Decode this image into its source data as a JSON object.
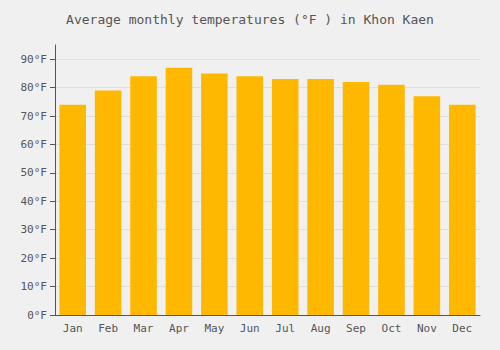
{
  "chart_data": {
    "type": "bar",
    "title": "Average monthly temperatures (°F ) in Khon Kaen",
    "categories": [
      "Jan",
      "Feb",
      "Mar",
      "Apr",
      "May",
      "Jun",
      "Jul",
      "Aug",
      "Sep",
      "Oct",
      "Nov",
      "Dec"
    ],
    "values": [
      74,
      79,
      84,
      87,
      85,
      84,
      83,
      83,
      82,
      81,
      77,
      74
    ],
    "color": "#FFB800",
    "ylim": [
      0,
      95
    ],
    "yticks": [
      {
        "value": 0,
        "label": "0°F"
      },
      {
        "value": 10,
        "label": "10°F"
      },
      {
        "value": 20,
        "label": "20°F"
      },
      {
        "value": 30,
        "label": "30°F"
      },
      {
        "value": 40,
        "label": "40°F"
      },
      {
        "value": 50,
        "label": "50°F"
      },
      {
        "value": 60,
        "label": "60°F"
      },
      {
        "value": 70,
        "label": "70°F"
      },
      {
        "value": 80,
        "label": "80°F"
      },
      {
        "value": 90,
        "label": "90°F"
      }
    ],
    "grid": true
  }
}
